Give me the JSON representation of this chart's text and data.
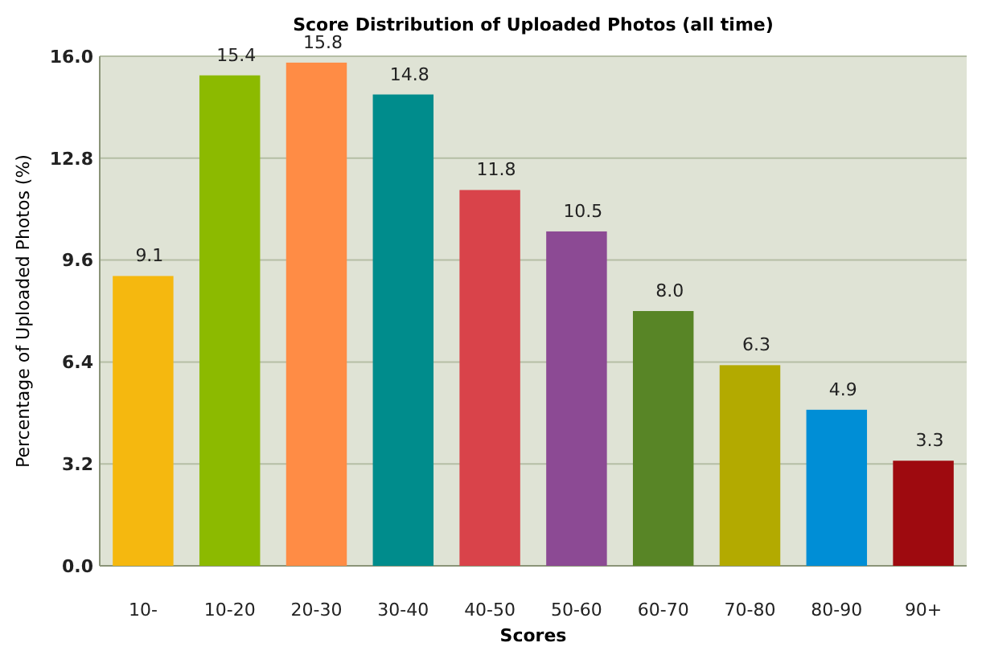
{
  "chart_data": {
    "type": "bar",
    "title": "Score Distribution of Uploaded Photos (all time)",
    "xlabel": "Scores",
    "ylabel": "Percentage of Uploaded Photos (%)",
    "categories": [
      "10-",
      "10-20",
      "20-30",
      "30-40",
      "40-50",
      "50-60",
      "60-70",
      "70-80",
      "80-90",
      "90+"
    ],
    "values": [
      9.1,
      15.4,
      15.8,
      14.8,
      11.8,
      10.5,
      8.0,
      6.3,
      4.9,
      3.3
    ],
    "colors": [
      "#f5b80f",
      "#8cba00",
      "#ff8c45",
      "#008c8c",
      "#d9434a",
      "#8c4a94",
      "#588526",
      "#b3aa00",
      "#008ed6",
      "#9e0a0f"
    ],
    "ylim": [
      0,
      16
    ],
    "yticks": [
      {
        "value": 0,
        "label": "0.0"
      },
      {
        "value": 3.2,
        "label": "3.2"
      },
      {
        "value": 6.4,
        "label": "6.4"
      },
      {
        "value": 9.6,
        "label": "9.6"
      },
      {
        "value": 12.8,
        "label": "12.8"
      },
      {
        "value": 16,
        "label": "16.0"
      }
    ],
    "value_labels": [
      "9.1",
      "15.4",
      "15.8",
      "14.8",
      "11.8",
      "10.5",
      "8.0",
      "6.3",
      "4.9",
      "3.3"
    ],
    "grid": "y"
  }
}
